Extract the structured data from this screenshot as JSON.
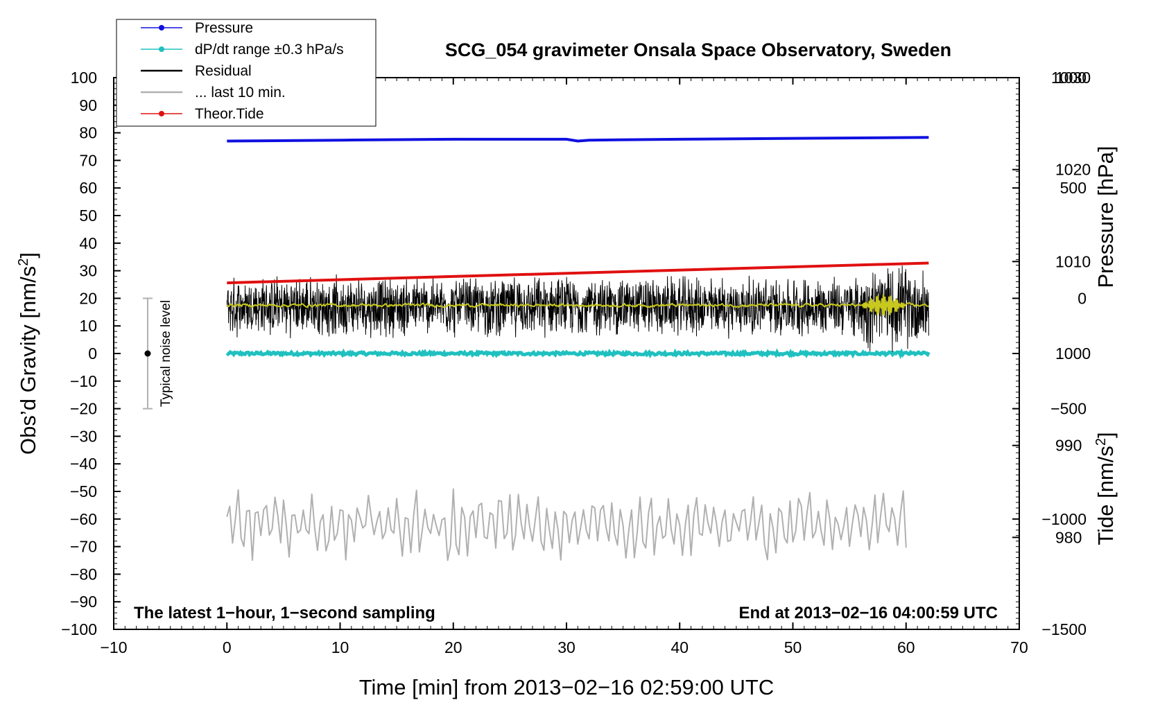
{
  "chart_data": {
    "type": "line",
    "title": "SCG_054 gravimeter Onsala Space Observatory, Sweden",
    "xlabel": "Time [min] from 2013−02−16 02:59:00 UTC",
    "ylabel_left": "Obs’d Gravity [nm/s²]",
    "ylabel_left_main": "Obs’d Gravity [nm/s",
    "ylabel_left_sup": "2",
    "ylabel_left_close": "]",
    "ylabel_right_upper": "Pressure [hPa]",
    "ylabel_right_lower": "Tide [nm/s²]",
    "ylabel_right_lower_main": "Tide [nm/s",
    "ylabel_right_lower_sup": "2",
    "ylabel_right_lower_close": "]",
    "xlim": [
      -10,
      70
    ],
    "ylim": [
      -100,
      100
    ],
    "pressure_lim": [
      970,
      1030
    ],
    "tide_lim": [
      -1500,
      1000
    ],
    "x_ticks": [
      "−10",
      "0",
      "10",
      "20",
      "30",
      "40",
      "50",
      "60",
      "70"
    ],
    "x_tick_values": [
      -10,
      0,
      10,
      20,
      30,
      40,
      50,
      60,
      70
    ],
    "y_ticks": [
      "100",
      "90",
      "80",
      "70",
      "60",
      "50",
      "40",
      "30",
      "20",
      "10",
      "0",
      "−10",
      "−20",
      "−30",
      "−40",
      "−50",
      "−60",
      "−70",
      "−80",
      "−90",
      "−100"
    ],
    "y_tick_values": [
      100,
      90,
      80,
      70,
      60,
      50,
      40,
      30,
      20,
      10,
      0,
      -10,
      -20,
      -30,
      -40,
      -50,
      -60,
      -70,
      -80,
      -90,
      -100
    ],
    "pressure_ticks": [
      "1030",
      "1020",
      "1010",
      "1000",
      "990",
      "980"
    ],
    "pressure_tick_values": [
      1030,
      1020,
      1010,
      1000,
      990,
      980
    ],
    "tide_ticks": [
      "1000",
      "500",
      "0",
      "−500",
      "−1000",
      "−1500"
    ],
    "tide_tick_values": [
      1000,
      500,
      0,
      -500,
      -1000,
      -1500
    ],
    "annotation_left": "The latest 1−hour, 1−second sampling",
    "annotation_right": "End at 2013−02−16 04:00:59 UTC",
    "noise_label": "Typical noise level",
    "noise_bar": {
      "x": -7,
      "center": 0,
      "low": -20,
      "high": 20
    },
    "legend": [
      {
        "label": "Pressure",
        "color": "#1010e0",
        "marker": true
      },
      {
        "label": "dP/dt range ±0.3 hPa/s",
        "color": "#20c0c0",
        "marker": true
      },
      {
        "label": "Residual",
        "color": "#000000",
        "marker": false
      },
      {
        "label": "... last 10 min.",
        "color": "#b0b0b0",
        "marker": false
      },
      {
        "label": "Theor.Tide",
        "color": "#e01010",
        "marker": true
      }
    ],
    "series": [
      {
        "name": "Pressure",
        "axis": "pressure",
        "color": "#1010e0",
        "x": [
          0,
          10,
          20,
          30,
          31,
          32,
          40,
          50,
          62
        ],
        "values": [
          1023.1,
          1023.2,
          1023.3,
          1023.3,
          1023.1,
          1023.2,
          1023.3,
          1023.4,
          1023.5
        ]
      },
      {
        "name": "dP/dt range ±0.3 hPa/s",
        "axis": "pressure",
        "color": "#20c0c0",
        "x": [
          0,
          62
        ],
        "values": [
          1000,
          1000
        ],
        "jitter": 0.3
      },
      {
        "name": "Residual",
        "axis": "gravity",
        "color": "#000000",
        "x_start": 0,
        "x_end": 62,
        "mean": 17,
        "amplitude": 10
      },
      {
        "name": "Residual smoothed",
        "axis": "gravity",
        "color": "#c8c81e",
        "x_start": 0,
        "x_end": 62,
        "mean": 17.5,
        "amplitude": 1.2,
        "burst_start": 56,
        "burst_end": 60,
        "burst_amplitude": 4
      },
      {
        "name": "... last 10 min.",
        "axis": "gravity",
        "color": "#b0b0b0",
        "x_start": 0,
        "x_end": 60,
        "mean": -62,
        "amplitude": 9
      },
      {
        "name": "Theor.Tide",
        "axis": "tide",
        "color": "#e01010",
        "x": [
          0,
          62
        ],
        "values": [
          70,
          160
        ]
      }
    ]
  }
}
